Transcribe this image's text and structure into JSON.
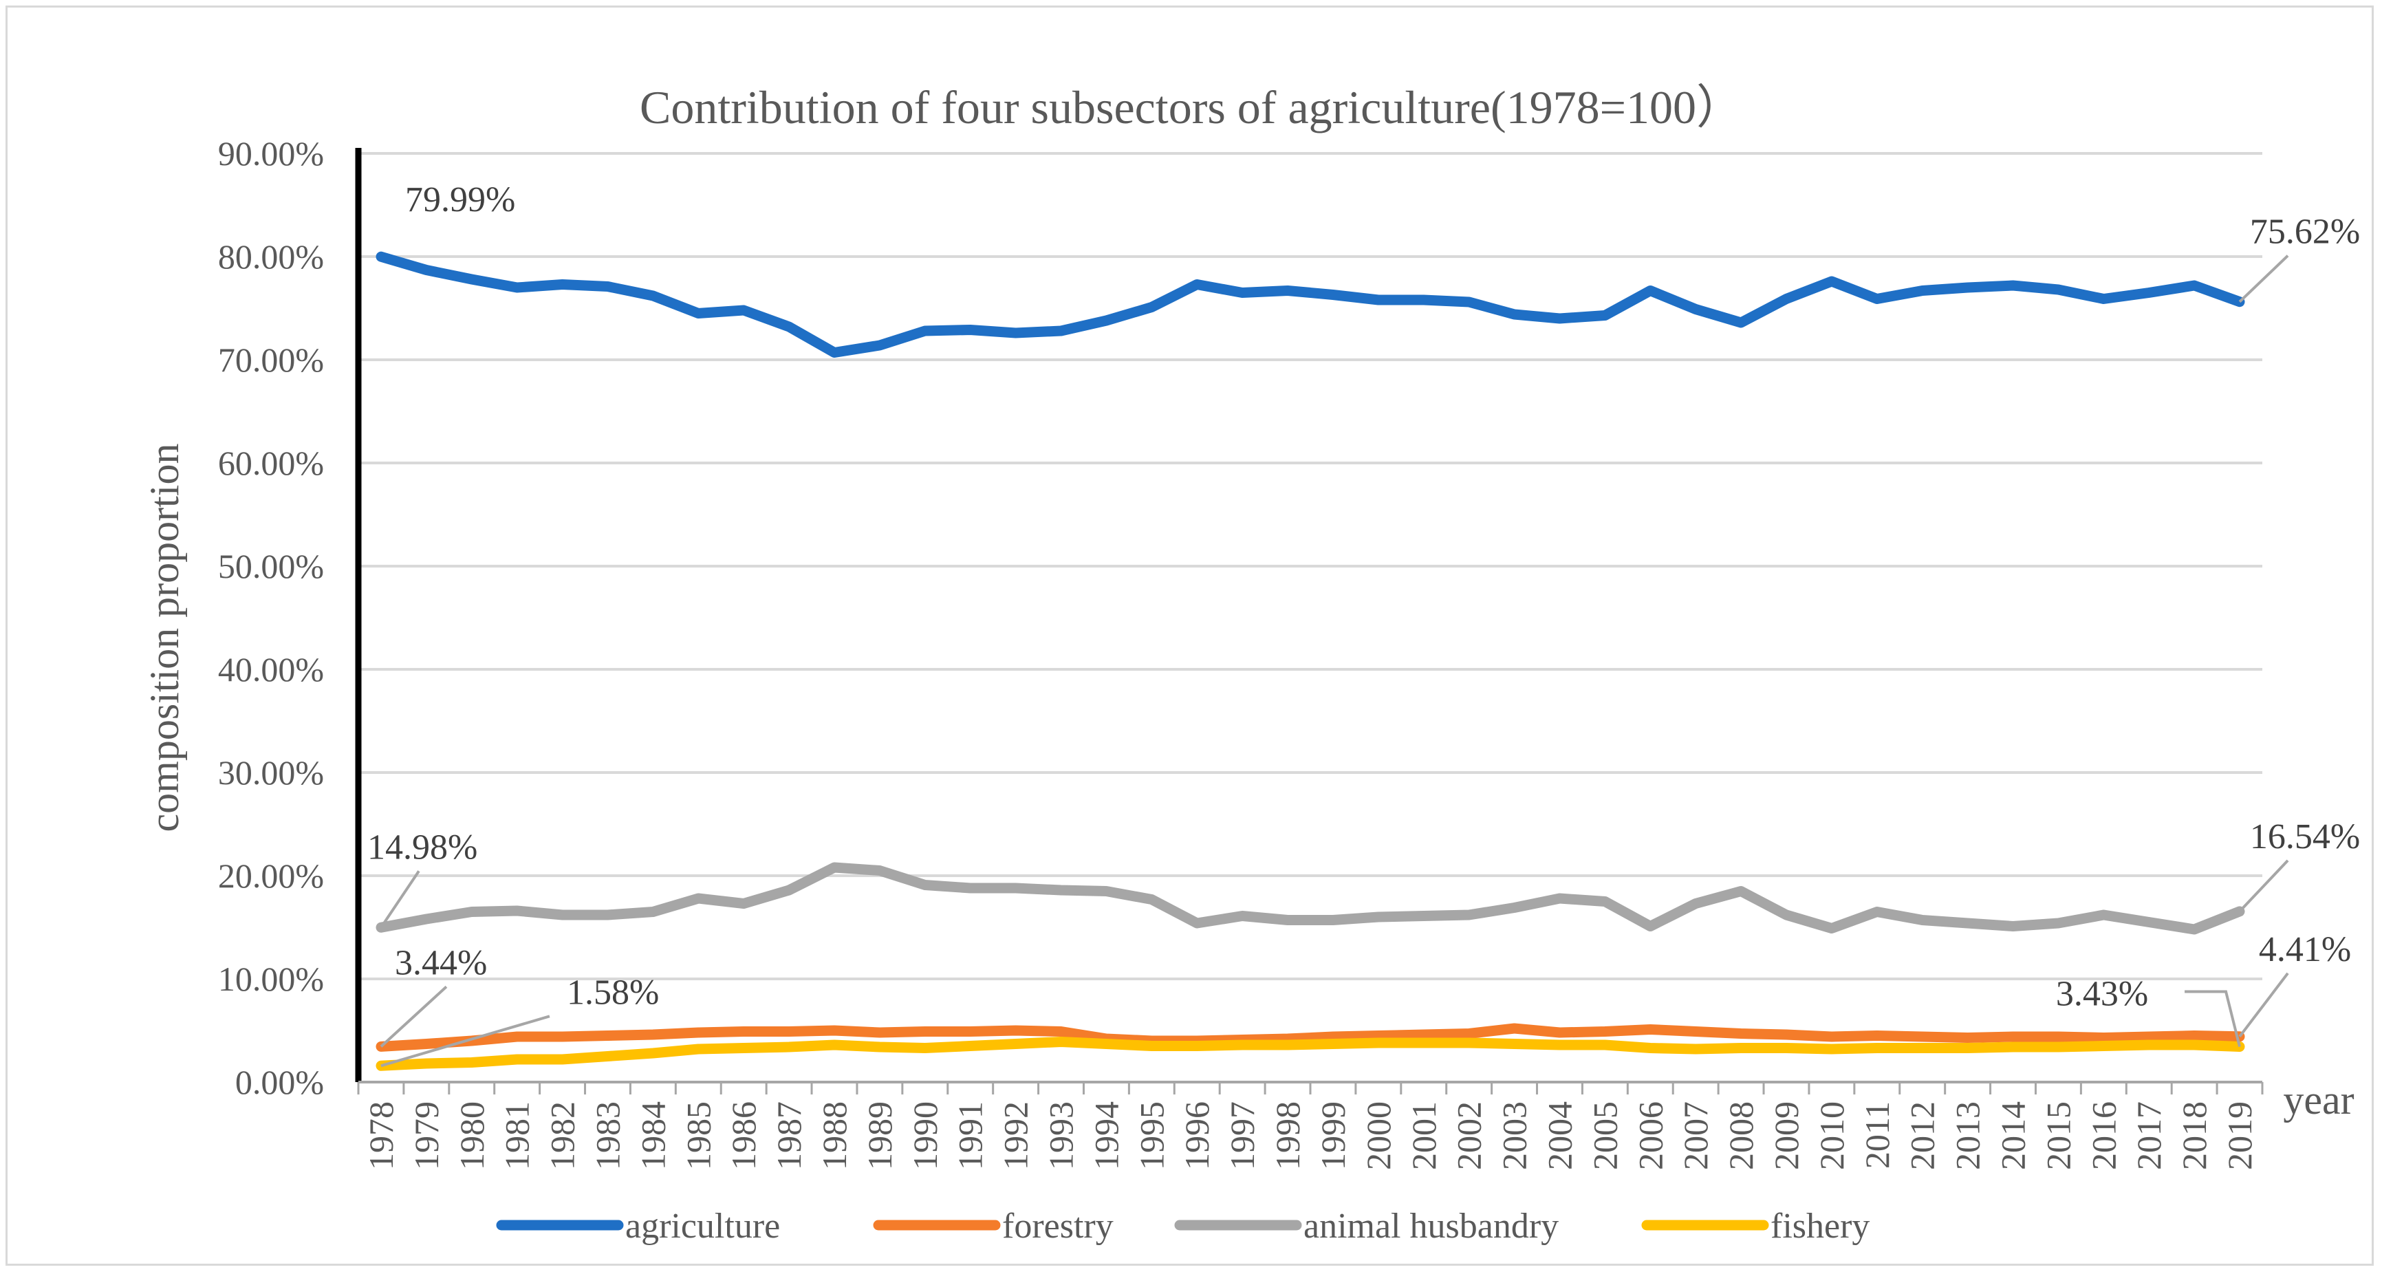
{
  "chart_data": {
    "type": "line",
    "title": "Contribution of four subsectors of agriculture(1978=100）",
    "xlabel": "year",
    "ylabel": "composition proportion",
    "ylim": [
      0,
      90
    ],
    "yticks": [
      "0.00%",
      "10.00%",
      "20.00%",
      "30.00%",
      "40.00%",
      "50.00%",
      "60.00%",
      "70.00%",
      "80.00%",
      "90.00%"
    ],
    "grid": true,
    "legend_position": "bottom",
    "categories": [
      "1978",
      "1979",
      "1980",
      "1981",
      "1982",
      "1983",
      "1984",
      "1985",
      "1986",
      "1987",
      "1988",
      "1989",
      "1990",
      "1991",
      "1992",
      "1993",
      "1994",
      "1995",
      "1996",
      "1997",
      "1998",
      "1999",
      "2000",
      "2001",
      "2002",
      "2003",
      "2004",
      "2005",
      "2006",
      "2007",
      "2008",
      "2009",
      "2010",
      "2011",
      "2012",
      "2013",
      "2014",
      "2015",
      "2016",
      "2017",
      "2018",
      "2019"
    ],
    "series": [
      {
        "name": "agriculture",
        "color": "#1f6fc5",
        "values": [
          79.99,
          78.7,
          77.8,
          77.0,
          77.3,
          77.1,
          76.2,
          74.5,
          74.8,
          73.2,
          70.7,
          71.4,
          72.8,
          72.9,
          72.6,
          72.8,
          73.8,
          75.1,
          77.3,
          76.5,
          76.7,
          76.3,
          75.8,
          75.8,
          75.6,
          74.4,
          74.0,
          74.3,
          76.7,
          74.9,
          73.6,
          75.9,
          77.6,
          75.9,
          76.7,
          77.0,
          77.2,
          76.8,
          75.9,
          76.5,
          77.2,
          75.62
        ]
      },
      {
        "name": "forestry",
        "color": "#f47c2a",
        "values": [
          3.44,
          3.7,
          4.0,
          4.4,
          4.4,
          4.5,
          4.6,
          4.8,
          4.9,
          4.9,
          5.0,
          4.8,
          4.9,
          4.9,
          5.0,
          4.9,
          4.2,
          4.0,
          4.0,
          4.1,
          4.2,
          4.4,
          4.5,
          4.6,
          4.7,
          5.2,
          4.8,
          4.9,
          5.1,
          4.9,
          4.7,
          4.6,
          4.4,
          4.5,
          4.4,
          4.3,
          4.4,
          4.4,
          4.3,
          4.4,
          4.5,
          4.41
        ]
      },
      {
        "name": "animal husbandry",
        "color": "#a6a6a6",
        "values": [
          14.98,
          15.8,
          16.5,
          16.6,
          16.2,
          16.2,
          16.5,
          17.8,
          17.3,
          18.6,
          20.8,
          20.5,
          19.1,
          18.8,
          18.8,
          18.6,
          18.5,
          17.7,
          15.4,
          16.1,
          15.7,
          15.7,
          16.0,
          16.1,
          16.2,
          16.9,
          17.8,
          17.5,
          15.1,
          17.3,
          18.5,
          16.2,
          14.9,
          16.5,
          15.7,
          15.4,
          15.1,
          15.4,
          16.2,
          15.5,
          14.8,
          16.54
        ]
      },
      {
        "name": "fishery",
        "color": "#ffc000",
        "values": [
          1.58,
          1.8,
          1.9,
          2.2,
          2.2,
          2.5,
          2.8,
          3.2,
          3.3,
          3.4,
          3.6,
          3.4,
          3.3,
          3.5,
          3.7,
          3.9,
          3.7,
          3.5,
          3.5,
          3.6,
          3.6,
          3.7,
          3.8,
          3.8,
          3.8,
          3.7,
          3.6,
          3.6,
          3.3,
          3.2,
          3.3,
          3.3,
          3.2,
          3.3,
          3.3,
          3.3,
          3.4,
          3.4,
          3.5,
          3.6,
          3.6,
          3.43
        ]
      }
    ],
    "data_labels": [
      {
        "series": "agriculture",
        "year": "1978",
        "text": "79.99%"
      },
      {
        "series": "agriculture",
        "year": "2019",
        "text": "75.62%"
      },
      {
        "series": "animal husbandry",
        "year": "1978",
        "text": "14.98%"
      },
      {
        "series": "animal husbandry",
        "year": "2019",
        "text": "16.54%"
      },
      {
        "series": "forestry",
        "year": "1978",
        "text": "3.44%"
      },
      {
        "series": "fishery",
        "year": "1978",
        "text": "1.58%"
      },
      {
        "series": "fishery",
        "year": "2019",
        "text": "3.43%"
      },
      {
        "series": "forestry",
        "year": "2019",
        "text": "4.41%"
      }
    ]
  }
}
